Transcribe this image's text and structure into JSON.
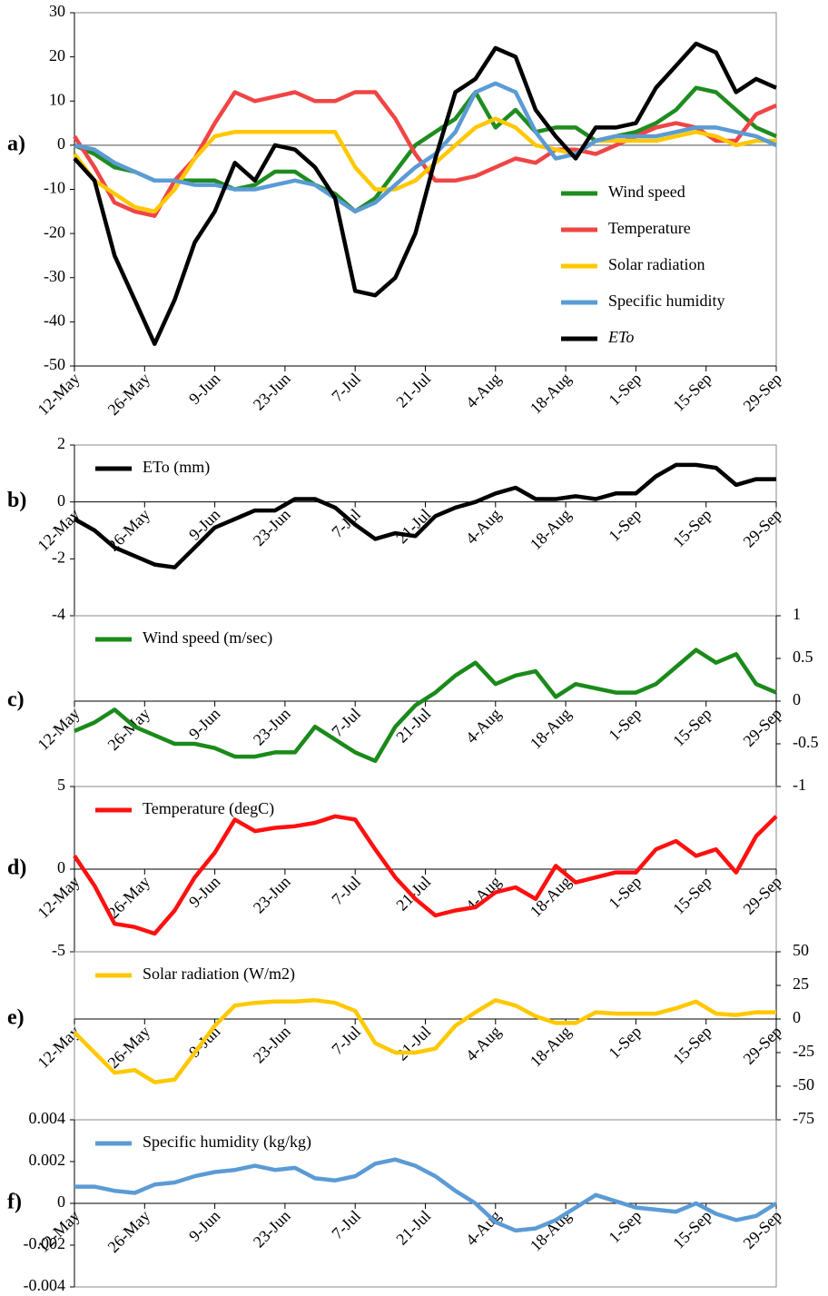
{
  "chart_data": [
    {
      "type": "line",
      "panel_label": "a)",
      "zero_line": true,
      "legend": "lower right",
      "x": [
        0,
        4,
        8,
        12,
        16,
        20,
        24,
        28,
        32,
        36,
        40,
        44,
        48,
        52,
        56,
        60,
        64,
        68,
        72,
        76,
        80,
        84,
        88,
        92,
        96,
        100,
        104,
        108,
        112,
        116,
        120,
        124,
        128,
        132,
        136,
        140
      ],
      "xlim": [
        0,
        140
      ],
      "xticks": [
        {
          "value": 0,
          "label": "12-May"
        },
        {
          "value": 14,
          "label": "26-May"
        },
        {
          "value": 28,
          "label": "9-Jun"
        },
        {
          "value": 42,
          "label": "23-Jun"
        },
        {
          "value": 56,
          "label": "7-Jul"
        },
        {
          "value": 70,
          "label": "21-Jul"
        },
        {
          "value": 84,
          "label": "4-Aug"
        },
        {
          "value": 98,
          "label": "18-Aug"
        },
        {
          "value": 112,
          "label": "1-Sep"
        },
        {
          "value": 126,
          "label": "15-Sep"
        },
        {
          "value": 140,
          "label": "29-Sep"
        }
      ],
      "ylim": [
        -50,
        30
      ],
      "yticks": [
        -50,
        -40,
        -30,
        -20,
        -10,
        0,
        10,
        20,
        30
      ],
      "yaxis": "left",
      "series": [
        {
          "name": "Wind speed",
          "color": "#1f8c1f",
          "values": [
            0,
            -2,
            -5,
            -6,
            -8,
            -8,
            -8,
            -8,
            -10,
            -9,
            -6,
            -6,
            -9,
            -11,
            -15,
            -12,
            -6,
            0,
            3,
            6,
            12,
            4,
            8,
            3,
            4,
            4,
            1,
            2,
            3,
            5,
            8,
            13,
            12,
            8,
            4,
            2
          ]
        },
        {
          "name": "Temperature",
          "color": "#f04545",
          "values": [
            2,
            -5,
            -13,
            -15,
            -16,
            -8,
            -3,
            5,
            12,
            10,
            11,
            12,
            10,
            10,
            12,
            12,
            6,
            -2,
            -8,
            -8,
            -7,
            -5,
            -3,
            -4,
            -1,
            -1,
            -2,
            0,
            2,
            4,
            5,
            4,
            1,
            1,
            7,
            9
          ]
        },
        {
          "name": "Solar radiation",
          "color": "#ffc800",
          "values": [
            -2,
            -8,
            -11,
            -14,
            -15,
            -10,
            -3,
            2,
            3,
            3,
            3,
            3,
            3,
            3,
            -5,
            -10,
            -10,
            -8,
            -4,
            0,
            4,
            6,
            4,
            0,
            -1,
            -2,
            1,
            1,
            1,
            1,
            2,
            3,
            2,
            0,
            1,
            1
          ]
        },
        {
          "name": "Specific humidity",
          "color": "#5b9bd5",
          "values": [
            0,
            -1,
            -4,
            -6,
            -8,
            -8,
            -9,
            -9,
            -10,
            -10,
            -9,
            -8,
            -9,
            -12,
            -15,
            -13,
            -9,
            -5,
            -2,
            3,
            12,
            14,
            12,
            3,
            -3,
            -2,
            1,
            2,
            2,
            2,
            3,
            4,
            4,
            3,
            2,
            0
          ]
        },
        {
          "name": "ETo",
          "color": "#000000",
          "values": [
            -3,
            -8,
            -25,
            -35,
            -45,
            -35,
            -22,
            -15,
            -4,
            -8,
            0,
            -1,
            -5,
            -12,
            -33,
            -34,
            -30,
            -20,
            -3,
            12,
            15,
            22,
            20,
            8,
            2,
            -3,
            4,
            4,
            5,
            13,
            18,
            23,
            21,
            12,
            15,
            13
          ]
        }
      ]
    },
    {
      "type": "line",
      "panel_label": "b)",
      "legend": "upper left",
      "x": [
        0,
        4,
        8,
        12,
        16,
        20,
        24,
        28,
        32,
        36,
        40,
        44,
        48,
        52,
        56,
        60,
        64,
        68,
        72,
        76,
        80,
        84,
        88,
        92,
        96,
        100,
        104,
        108,
        112,
        116,
        120,
        124,
        128,
        132,
        136,
        140
      ],
      "xlim": [
        0,
        140
      ],
      "xticks": [
        {
          "value": 0,
          "label": "12-May"
        },
        {
          "value": 14,
          "label": "26-May"
        },
        {
          "value": 28,
          "label": "9-Jun"
        },
        {
          "value": 42,
          "label": "23-Jun"
        },
        {
          "value": 56,
          "label": "7-Jul"
        },
        {
          "value": 70,
          "label": "21-Jul"
        },
        {
          "value": 84,
          "label": "4-Aug"
        },
        {
          "value": 98,
          "label": "18-Aug"
        },
        {
          "value": 112,
          "label": "1-Sep"
        },
        {
          "value": 126,
          "label": "15-Sep"
        },
        {
          "value": 140,
          "label": "29-Sep"
        }
      ],
      "ylim": [
        -4,
        2
      ],
      "yticks": [
        -4,
        -2,
        0,
        2
      ],
      "yaxis": "left",
      "series": [
        {
          "name": "ETo (mm)",
          "color": "#000000",
          "values": [
            -0.6,
            -1.0,
            -1.6,
            -1.9,
            -2.2,
            -2.3,
            -1.6,
            -0.9,
            -0.6,
            -0.3,
            -0.3,
            0.1,
            0.1,
            -0.2,
            -0.8,
            -1.3,
            -1.1,
            -1.2,
            -0.5,
            -0.2,
            0.0,
            0.3,
            0.5,
            0.1,
            0.1,
            0.2,
            0.1,
            0.3,
            0.3,
            0.9,
            1.3,
            1.3,
            1.2,
            0.6,
            0.8,
            0.8
          ]
        }
      ]
    },
    {
      "type": "line",
      "panel_label": "c)",
      "legend": "upper left",
      "x": [
        0,
        4,
        8,
        12,
        16,
        20,
        24,
        28,
        32,
        36,
        40,
        44,
        48,
        52,
        56,
        60,
        64,
        68,
        72,
        76,
        80,
        84,
        88,
        92,
        96,
        100,
        104,
        108,
        112,
        116,
        120,
        124,
        128,
        132,
        136,
        140
      ],
      "xlim": [
        0,
        140
      ],
      "xticks": [
        {
          "value": 0,
          "label": "12-May"
        },
        {
          "value": 14,
          "label": "26-May"
        },
        {
          "value": 28,
          "label": "9-Jun"
        },
        {
          "value": 42,
          "label": "23-Jun"
        },
        {
          "value": 56,
          "label": "7-Jul"
        },
        {
          "value": 70,
          "label": "21-Jul"
        },
        {
          "value": 84,
          "label": "4-Aug"
        },
        {
          "value": 98,
          "label": "18-Aug"
        },
        {
          "value": 112,
          "label": "1-Sep"
        },
        {
          "value": 126,
          "label": "15-Sep"
        },
        {
          "value": 140,
          "label": "29-Sep"
        }
      ],
      "ylim": [
        -1,
        1
      ],
      "yticks": [
        -1,
        -0.5,
        0,
        0.5,
        1
      ],
      "yaxis": "right",
      "series": [
        {
          "name": "Wind speed (m/sec)",
          "color": "#1a8a1a",
          "values": [
            -0.35,
            -0.25,
            -0.1,
            -0.3,
            -0.4,
            -0.5,
            -0.5,
            -0.55,
            -0.65,
            -0.65,
            -0.6,
            -0.6,
            -0.3,
            -0.45,
            -0.6,
            -0.7,
            -0.3,
            -0.05,
            0.1,
            0.3,
            0.45,
            0.2,
            0.3,
            0.35,
            0.05,
            0.2,
            0.15,
            0.1,
            0.1,
            0.2,
            0.4,
            0.6,
            0.45,
            0.55,
            0.2,
            0.1
          ]
        }
      ]
    },
    {
      "type": "line",
      "panel_label": "d)",
      "legend": "upper left",
      "x": [
        0,
        4,
        8,
        12,
        16,
        20,
        24,
        28,
        32,
        36,
        40,
        44,
        48,
        52,
        56,
        60,
        64,
        68,
        72,
        76,
        80,
        84,
        88,
        92,
        96,
        100,
        104,
        108,
        112,
        116,
        120,
        124,
        128,
        132,
        136,
        140
      ],
      "xlim": [
        0,
        140
      ],
      "xticks": [
        {
          "value": 0,
          "label": "12-May"
        },
        {
          "value": 14,
          "label": "26-May"
        },
        {
          "value": 28,
          "label": "9-Jun"
        },
        {
          "value": 42,
          "label": "23-Jun"
        },
        {
          "value": 56,
          "label": "7-Jul"
        },
        {
          "value": 70,
          "label": "21-Jul"
        },
        {
          "value": 84,
          "label": "4-Aug"
        },
        {
          "value": 98,
          "label": "18-Aug"
        },
        {
          "value": 112,
          "label": "1-Sep"
        },
        {
          "value": 126,
          "label": "15-Sep"
        },
        {
          "value": 140,
          "label": "29-Sep"
        }
      ],
      "ylim": [
        -5,
        5
      ],
      "yticks": [
        -5,
        0,
        5
      ],
      "yaxis": "left",
      "series": [
        {
          "name": "Temperature (degC)",
          "color": "#ff1010",
          "values": [
            0.8,
            -1.0,
            -3.3,
            -3.5,
            -3.9,
            -2.5,
            -0.5,
            1.0,
            3.0,
            2.3,
            2.5,
            2.6,
            2.8,
            3.2,
            3.0,
            1.2,
            -0.5,
            -1.8,
            -2.8,
            -2.5,
            -2.3,
            -1.4,
            -1.1,
            -1.8,
            0.2,
            -0.8,
            -0.5,
            -0.2,
            -0.2,
            1.2,
            1.7,
            0.8,
            1.2,
            -0.2,
            2.0,
            3.2
          ]
        }
      ]
    },
    {
      "type": "line",
      "panel_label": "e)",
      "legend": "upper left",
      "x": [
        0,
        4,
        8,
        12,
        16,
        20,
        24,
        28,
        32,
        36,
        40,
        44,
        48,
        52,
        56,
        60,
        64,
        68,
        72,
        76,
        80,
        84,
        88,
        92,
        96,
        100,
        104,
        108,
        112,
        116,
        120,
        124,
        128,
        132,
        136,
        140
      ],
      "xlim": [
        0,
        140
      ],
      "xticks": [
        {
          "value": 0,
          "label": "12-May"
        },
        {
          "value": 14,
          "label": "26-May"
        },
        {
          "value": 28,
          "label": "9-Jun"
        },
        {
          "value": 42,
          "label": "23-Jun"
        },
        {
          "value": 56,
          "label": "7-Jul"
        },
        {
          "value": 70,
          "label": "21-Jul"
        },
        {
          "value": 84,
          "label": "4-Aug"
        },
        {
          "value": 98,
          "label": "18-Aug"
        },
        {
          "value": 112,
          "label": "1-Sep"
        },
        {
          "value": 126,
          "label": "15-Sep"
        },
        {
          "value": 140,
          "label": "29-Sep"
        }
      ],
      "ylim": [
        -75,
        50
      ],
      "yticks": [
        -75,
        -50,
        -25,
        0,
        25,
        50
      ],
      "yaxis": "right",
      "series": [
        {
          "name": "Solar radiation (W/m2)",
          "color": "#ffc800",
          "values": [
            -10,
            -25,
            -40,
            -38,
            -47,
            -45,
            -25,
            -5,
            10,
            12,
            13,
            13,
            14,
            12,
            6,
            -18,
            -25,
            -25,
            -22,
            -5,
            5,
            14,
            10,
            2,
            -3,
            -3,
            5,
            4,
            4,
            4,
            8,
            13,
            4,
            3,
            5,
            5
          ]
        }
      ]
    },
    {
      "type": "line",
      "panel_label": "f)",
      "legend": "upper left",
      "x": [
        0,
        4,
        8,
        12,
        16,
        20,
        24,
        28,
        32,
        36,
        40,
        44,
        48,
        52,
        56,
        60,
        64,
        68,
        72,
        76,
        80,
        84,
        88,
        92,
        96,
        100,
        104,
        108,
        112,
        116,
        120,
        124,
        128,
        132,
        136,
        140
      ],
      "xlim": [
        0,
        140
      ],
      "xticks": [
        {
          "value": 0,
          "label": "12-May"
        },
        {
          "value": 14,
          "label": "26-May"
        },
        {
          "value": 28,
          "label": "9-Jun"
        },
        {
          "value": 42,
          "label": "23-Jun"
        },
        {
          "value": 56,
          "label": "7-Jul"
        },
        {
          "value": 70,
          "label": "21-Jul"
        },
        {
          "value": 84,
          "label": "4-Aug"
        },
        {
          "value": 98,
          "label": "18-Aug"
        },
        {
          "value": 112,
          "label": "1-Sep"
        },
        {
          "value": 126,
          "label": "15-Sep"
        },
        {
          "value": 140,
          "label": "29-Sep"
        }
      ],
      "ylim": [
        -0.004,
        0.004
      ],
      "yticks": [
        -0.004,
        -0.002,
        0,
        0.002,
        0.004
      ],
      "yaxis": "left",
      "series": [
        {
          "name": "Specific humidity (kg/kg)",
          "color": "#5b9bd5",
          "values": [
            0.0008,
            0.0008,
            0.0006,
            0.0005,
            0.0009,
            0.001,
            0.0013,
            0.0015,
            0.0016,
            0.0018,
            0.0016,
            0.0017,
            0.0012,
            0.0011,
            0.0013,
            0.0019,
            0.0021,
            0.0018,
            0.0013,
            0.0006,
            0,
            -0.0009,
            -0.0013,
            -0.0012,
            -0.0008,
            -0.0002,
            0.0004,
            0.0001,
            -0.0002,
            -0.0003,
            -0.0004,
            0,
            -0.0005,
            -0.0008,
            -0.0006,
            0
          ]
        }
      ]
    }
  ]
}
